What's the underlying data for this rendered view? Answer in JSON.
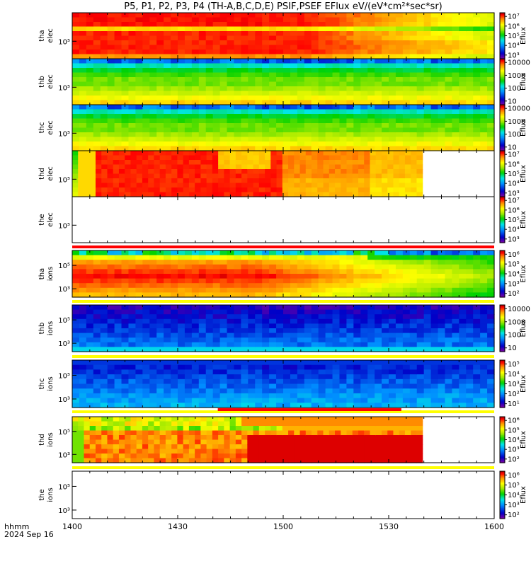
{
  "chart_data": {
    "type": "heatmap",
    "title": "P5, P1, P2, P3, P4 (TH-A,B,C,D,E) PSIF,PSEF EFlux eV/(eV*cm²*sec*sr)",
    "x_ticks": [
      "1400",
      "1430",
      "1500",
      "1530",
      "1600"
    ],
    "x_label_lines": [
      "hhmm",
      "2024 Sep 16"
    ],
    "colorbar_unit": "Eflux",
    "panels": [
      {
        "label_top": "tha",
        "label_bottom": "elec",
        "yticks": [
          "10⁵"
        ],
        "cbar_ticks": [
          "10³",
          "10⁴",
          "10⁵",
          "10⁶",
          "10⁷"
        ],
        "has_data": true,
        "data_end": 1.0,
        "pattern": "tha_elec"
      },
      {
        "label_top": "thb",
        "label_bottom": "elec",
        "yticks": [
          "10⁵"
        ],
        "cbar_ticks": [
          "10",
          "100",
          "1000",
          "10000"
        ],
        "has_data": true,
        "data_end": 1.0,
        "pattern": "thb_elec"
      },
      {
        "label_top": "thc",
        "label_bottom": "elec",
        "yticks": [
          "10⁵"
        ],
        "cbar_ticks": [
          "10",
          "100",
          "1000",
          "10000"
        ],
        "has_data": true,
        "data_end": 1.0,
        "pattern": "thc_elec"
      },
      {
        "label_top": "thd",
        "label_bottom": "elec",
        "yticks": [
          "10⁵"
        ],
        "cbar_ticks": [
          "10³",
          "10⁴",
          "10⁵",
          "10⁶",
          "10⁷"
        ],
        "has_data": true,
        "data_end": 0.83,
        "pattern": "thd_elec"
      },
      {
        "label_top": "the",
        "label_bottom": "elec",
        "yticks": [
          "10⁵"
        ],
        "cbar_ticks": [
          "10³",
          "10⁴",
          "10⁵",
          "10⁶",
          "10⁷"
        ],
        "has_data": false,
        "data_end": 0,
        "pattern": "none"
      },
      {
        "label_top": "tha",
        "label_bottom": "ions",
        "yticks": [
          "10⁵",
          "10³"
        ],
        "cbar_ticks": [
          "10²",
          "10³",
          "10⁴",
          "10⁵",
          "10⁶"
        ],
        "has_data": true,
        "data_end": 1.0,
        "pattern": "tha_ions"
      },
      {
        "label_top": "thb",
        "label_bottom": "ions",
        "yticks": [
          "10⁵",
          "10³"
        ],
        "cbar_ticks": [
          "10",
          "100",
          "1000",
          "10000"
        ],
        "has_data": true,
        "data_end": 1.0,
        "pattern": "thb_ions"
      },
      {
        "label_top": "thc",
        "label_bottom": "ions",
        "yticks": [
          "10⁵",
          "10³"
        ],
        "cbar_ticks": [
          "10¹",
          "10²",
          "10³",
          "10⁴",
          "10⁵"
        ],
        "has_data": true,
        "data_end": 1.0,
        "pattern": "thc_ions"
      },
      {
        "label_top": "thd",
        "label_bottom": "ions",
        "yticks": [
          "10⁵",
          "10³"
        ],
        "cbar_ticks": [
          "10²",
          "10³",
          "10⁴",
          "10⁵",
          "10⁶"
        ],
        "has_data": true,
        "data_end": 0.83,
        "pattern": "thd_ions"
      },
      {
        "label_top": "the",
        "label_bottom": "ions",
        "yticks": [
          "10⁵",
          "10³"
        ],
        "cbar_ticks": [
          "10²",
          "10³",
          "10⁴",
          "10⁵",
          "10⁶"
        ],
        "has_data": false,
        "data_end": 0,
        "pattern": "none"
      }
    ],
    "flag_bars": [
      {
        "color": "#ff0000",
        "start": 0.0,
        "end": 1.0
      },
      {
        "color": "#ffff00",
        "start": 0.0,
        "end": 1.0
      },
      {
        "color": "#ffff00",
        "start": 0.0,
        "end": 1.0
      },
      {
        "color": "#ffff00",
        "start": 0.0,
        "end": 1.0
      },
      {
        "color": "#ffff00",
        "start": 0.0,
        "end": 1.0
      }
    ],
    "flag_bar_overlay": {
      "color": "#ff0000",
      "start": 0.345,
      "end": 0.78
    }
  }
}
